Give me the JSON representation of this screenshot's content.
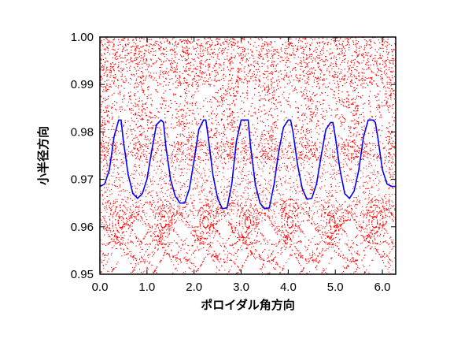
{
  "chart_data": {
    "type": "scatter",
    "title": "",
    "xlabel": "ポロイダル角方向",
    "ylabel": "小半径方向",
    "xlim": [
      0.0,
      6.2832
    ],
    "ylim": [
      0.95,
      1.0
    ],
    "x_ticks": [
      "0.0",
      "1.0",
      "2.0",
      "3.0",
      "4.0",
      "5.0",
      "6.0"
    ],
    "x_tick_values": [
      0,
      1,
      2,
      3,
      4,
      5,
      6
    ],
    "y_ticks": [
      "0.95",
      "0.96",
      "0.97",
      "0.98",
      "0.99",
      "1.00"
    ],
    "y_tick_values": [
      0.95,
      0.96,
      0.97,
      0.98,
      0.99,
      1.0
    ],
    "grid": false,
    "legend": "none",
    "colors": {
      "scatter": "#ff0000",
      "line": "#0000ff",
      "axes": "#000000"
    },
    "series": [
      {
        "kind": "points",
        "description_hidden": true,
        "color": "#ff0000",
        "band_structure": {
          "ergodic_layer": [
            0.975,
            1.0
          ],
          "lobe_period": 0.8976,
          "island_chain_center": 0.961
        }
      },
      {
        "kind": "line",
        "color": "#0000ff",
        "x": [
          0.0,
          0.1,
          0.2,
          0.3,
          0.4,
          0.45,
          0.5,
          0.6,
          0.7,
          0.8,
          0.9,
          1.0,
          1.1,
          1.2,
          1.3,
          1.35,
          1.4,
          1.5,
          1.6,
          1.7,
          1.8,
          1.9,
          2.0,
          2.1,
          2.2,
          2.25,
          2.3,
          2.4,
          2.5,
          2.6,
          2.7,
          2.8,
          2.9,
          3.0,
          3.1,
          3.15,
          3.2,
          3.3,
          3.4,
          3.5,
          3.6,
          3.7,
          3.8,
          3.9,
          4.0,
          4.05,
          4.1,
          4.2,
          4.3,
          4.4,
          4.5,
          4.6,
          4.7,
          4.8,
          4.9,
          4.95,
          5.0,
          5.1,
          5.2,
          5.3,
          5.4,
          5.5,
          5.6,
          5.7,
          5.8,
          5.85,
          5.9,
          6.0,
          6.1,
          6.2,
          6.28
        ],
        "y": [
          0.9685,
          0.969,
          0.972,
          0.979,
          0.9825,
          0.9825,
          0.978,
          0.971,
          0.967,
          0.966,
          0.967,
          0.97,
          0.976,
          0.9815,
          0.9825,
          0.982,
          0.977,
          0.97,
          0.9665,
          0.965,
          0.965,
          0.968,
          0.974,
          0.9805,
          0.9825,
          0.9825,
          0.979,
          0.971,
          0.966,
          0.9638,
          0.964,
          0.969,
          0.978,
          0.9825,
          0.9825,
          0.9825,
          0.977,
          0.969,
          0.965,
          0.9638,
          0.964,
          0.969,
          0.976,
          0.981,
          0.9825,
          0.9825,
          0.98,
          0.973,
          0.968,
          0.9658,
          0.966,
          0.969,
          0.975,
          0.9805,
          0.982,
          0.982,
          0.979,
          0.972,
          0.967,
          0.966,
          0.9675,
          0.972,
          0.979,
          0.9825,
          0.9825,
          0.982,
          0.979,
          0.972,
          0.969,
          0.9685,
          0.9685
        ]
      }
    ]
  }
}
